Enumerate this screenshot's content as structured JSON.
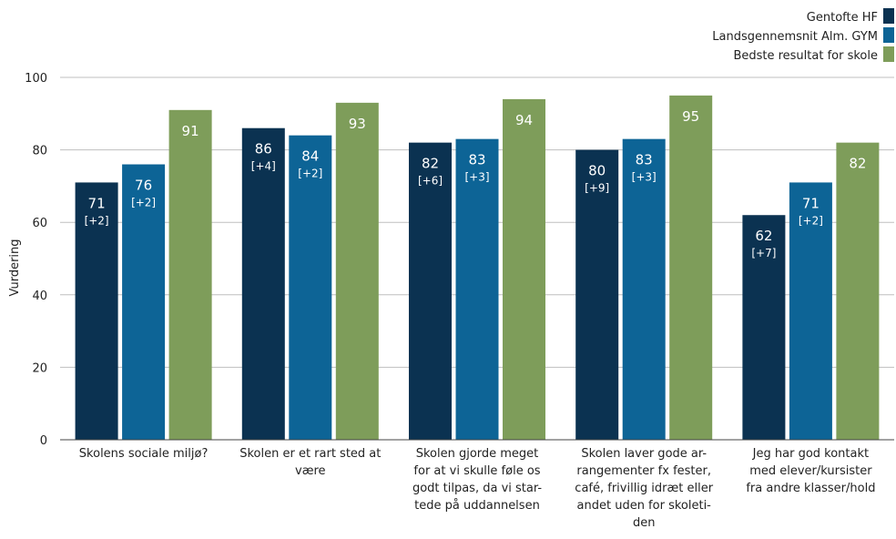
{
  "chart_data": {
    "type": "bar",
    "title": "",
    "xlabel": "",
    "ylabel": "Vurdering",
    "ylim": [
      0,
      100
    ],
    "yticks": [
      0,
      20,
      40,
      60,
      80,
      100
    ],
    "grid": true,
    "legend_position": "top-right",
    "categories": [
      [
        "Skolens sociale miljø?"
      ],
      [
        "Skolen er et rart sted at",
        "være"
      ],
      [
        "Skolen gjorde meget",
        "for at vi skulle føle os",
        "godt tilpas, da vi star-",
        "tede på uddannelsen"
      ],
      [
        "Skolen laver gode ar-",
        "rangementer fx fester,",
        "café, frivillig idræt eller",
        "andet uden for skoleti-",
        "den"
      ],
      [
        "Jeg har god kontakt",
        "med elever/kursister",
        "fra andre klasser/hold"
      ]
    ],
    "series": [
      {
        "name": "Gentofte HF",
        "color": "#0b3251",
        "values": [
          71,
          86,
          82,
          80,
          62
        ],
        "diff_labels": [
          "[+2]",
          "[+4]",
          "[+6]",
          "[+9]",
          "[+7]"
        ]
      },
      {
        "name": "Landsgennemsnit Alm. GYM",
        "color": "#0d6496",
        "values": [
          76,
          84,
          83,
          83,
          71
        ],
        "diff_labels": [
          "[+2]",
          "[+2]",
          "[+3]",
          "[+3]",
          "[+2]"
        ]
      },
      {
        "name": "Bedste resultat for skole",
        "color": "#7e9d5a",
        "values": [
          91,
          93,
          94,
          95,
          82
        ],
        "diff_labels": [
          "",
          "",
          "",
          "",
          ""
        ]
      }
    ]
  }
}
